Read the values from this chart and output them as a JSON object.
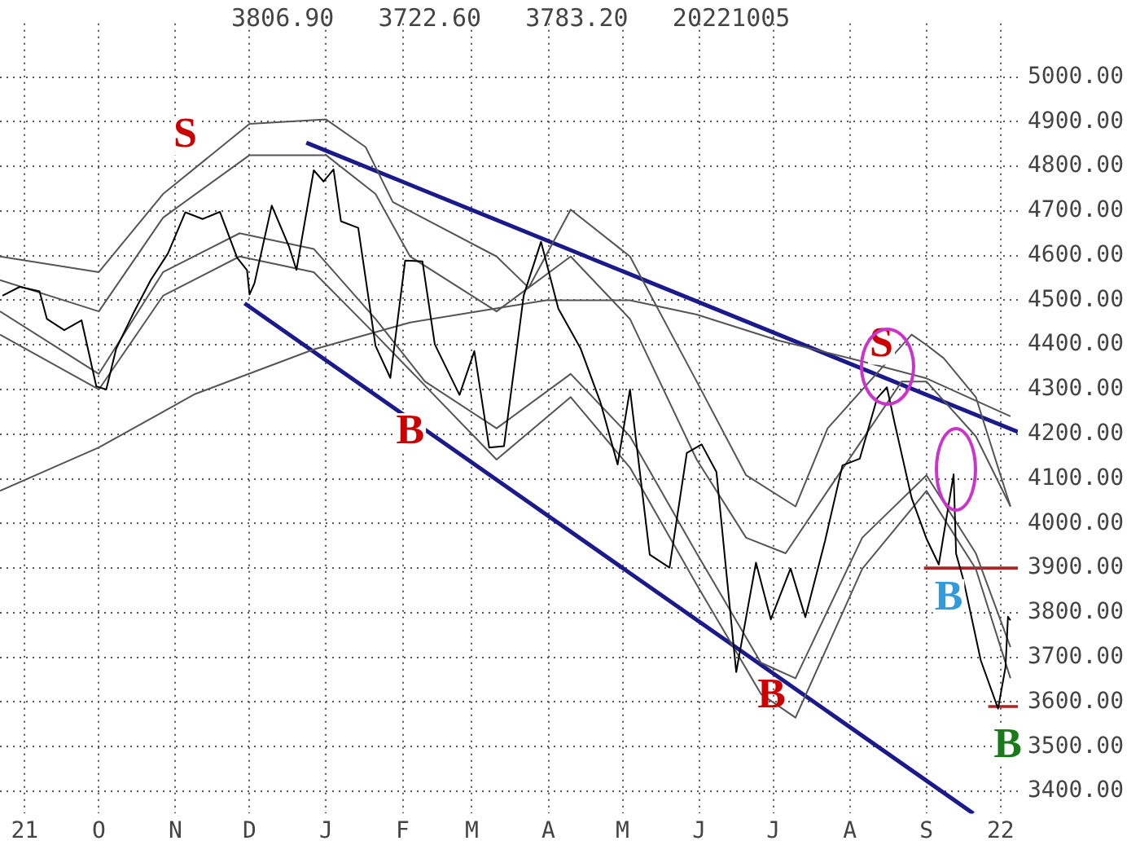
{
  "chart_data": {
    "type": "line",
    "xlim": [
      "2021-08-22",
      "2022-10-08"
    ],
    "xticks": [
      {
        "value": "2021-09-01",
        "label": "21"
      },
      {
        "value": "2021-10-01",
        "label": "O"
      },
      {
        "value": "2021-11-01",
        "label": "N"
      },
      {
        "value": "2021-12-01",
        "label": "D"
      },
      {
        "value": "2022-01-01",
        "label": "J"
      },
      {
        "value": "2022-02-01",
        "label": "F"
      },
      {
        "value": "2022-03-01",
        "label": "M"
      },
      {
        "value": "2022-04-01",
        "label": "A"
      },
      {
        "value": "2022-05-01",
        "label": "M"
      },
      {
        "value": "2022-06-01",
        "label": "J"
      },
      {
        "value": "2022-07-01",
        "label": "J"
      },
      {
        "value": "2022-08-01",
        "label": "A"
      },
      {
        "value": "2022-09-01",
        "label": "S"
      },
      {
        "value": "2022-10-01",
        "label": "22"
      }
    ],
    "ylim": [
      3350,
      5120
    ],
    "yticks": [
      {
        "value": 3400,
        "label": "3400.00"
      },
      {
        "value": 3500,
        "label": "3500.00"
      },
      {
        "value": 3600,
        "label": "3600.00"
      },
      {
        "value": 3700,
        "label": "3700.00"
      },
      {
        "value": 3800,
        "label": "3800.00"
      },
      {
        "value": 3900,
        "label": "3900.00"
      },
      {
        "value": 4000,
        "label": "4000.00"
      },
      {
        "value": 4100,
        "label": "4100.00"
      },
      {
        "value": 4200,
        "label": "4200.00"
      },
      {
        "value": 4300,
        "label": "4300.00"
      },
      {
        "value": 4400,
        "label": "4400.00"
      },
      {
        "value": 4500,
        "label": "4500.00"
      },
      {
        "value": 4600,
        "label": "4600.00"
      },
      {
        "value": 4700,
        "label": "4700.00"
      },
      {
        "value": 4800,
        "label": "4800.00"
      },
      {
        "value": 4900,
        "label": "4900.00"
      },
      {
        "value": 5000,
        "label": "5000.00"
      }
    ],
    "grid": true,
    "legend": false,
    "marker": "none",
    "line_style": "solid",
    "series": [
      {
        "color": "#000000",
        "x": [
          "2021-08-23",
          "2021-08-30",
          "2021-09-07",
          "2021-09-10",
          "2021-09-17",
          "2021-09-24",
          "2021-09-30",
          "2021-10-04",
          "2021-10-08",
          "2021-10-15",
          "2021-10-22",
          "2021-10-29",
          "2021-11-05",
          "2021-11-12",
          "2021-11-19",
          "2021-11-26",
          "2021-11-30",
          "2021-12-01",
          "2021-12-03",
          "2021-12-10",
          "2021-12-17",
          "2021-12-20",
          "2021-12-27",
          "2021-12-31",
          "2022-01-04",
          "2022-01-07",
          "2022-01-14",
          "2022-01-21",
          "2022-01-27",
          "2022-02-02",
          "2022-02-09",
          "2022-02-14",
          "2022-02-24",
          "2022-03-02",
          "2022-03-08",
          "2022-03-14",
          "2022-03-22",
          "2022-03-29",
          "2022-04-05",
          "2022-04-14",
          "2022-04-22",
          "2022-04-29",
          "2022-05-04",
          "2022-05-12",
          "2022-05-20",
          "2022-05-27",
          "2022-06-02",
          "2022-06-08",
          "2022-06-16",
          "2022-06-24",
          "2022-06-30",
          "2022-07-08",
          "2022-07-14",
          "2022-07-22",
          "2022-07-29",
          "2022-08-05",
          "2022-08-12",
          "2022-08-16",
          "2022-08-19",
          "2022-08-26",
          "2022-09-01",
          "2022-09-06",
          "2022-09-12",
          "2022-09-13",
          "2022-09-16",
          "2022-09-23",
          "2022-09-30",
          "2022-10-03",
          "2022-10-04",
          "2022-10-05"
        ],
        "values": [
          4510,
          4530,
          4520,
          4458,
          4433,
          4455,
          4307,
          4300,
          4391,
          4471,
          4545,
          4605,
          4697,
          4682,
          4698,
          4595,
          4567,
          4513,
          4538,
          4712,
          4620,
          4568,
          4791,
          4766,
          4793,
          4677,
          4662,
          4398,
          4326,
          4589,
          4587,
          4401,
          4288,
          4386,
          4170,
          4173,
          4511,
          4631,
          4481,
          4392,
          4272,
          4132,
          4300,
          3930,
          3901,
          4158,
          4177,
          4115,
          3667,
          3912,
          3785,
          3899,
          3790,
          3962,
          4130,
          4145,
          4280,
          4305,
          4228,
          4057,
          3966,
          3908,
          4110,
          3932,
          3873,
          3693,
          3585,
          3678,
          3791,
          3783
        ]
      },
      {
        "color": "#555555",
        "x": [
          "2021-08-22",
          "2021-10-01",
          "2021-10-27",
          "2021-12-01",
          "2022-01-01",
          "2022-01-17",
          "2022-01-28",
          "2022-03-11",
          "2022-03-24",
          "2022-04-10",
          "2022-05-04",
          "2022-05-31",
          "2022-06-20",
          "2022-07-10",
          "2022-07-23",
          "2022-08-26",
          "2022-09-01",
          "2022-09-08",
          "2022-09-21",
          "2022-09-30",
          "2022-10-05"
        ],
        "values": [
          4598,
          4563,
          4738,
          4895,
          4905,
          4843,
          4720,
          4598,
          4528,
          4703,
          4598,
          4318,
          4108,
          4038,
          4213,
          4423,
          4400,
          4370,
          4283,
          4125,
          4038
        ]
      },
      {
        "color": "#555555",
        "x": [
          "2021-08-22",
          "2021-10-01",
          "2021-10-27",
          "2021-12-01",
          "2022-01-01",
          "2022-01-21",
          "2022-02-04",
          "2022-03-11",
          "2022-04-10",
          "2022-05-04",
          "2022-05-31",
          "2022-06-20",
          "2022-07-06",
          "2022-07-23",
          "2022-08-22",
          "2022-09-01",
          "2022-09-21",
          "2022-10-05"
        ],
        "values": [
          4545,
          4475,
          4685,
          4825,
          4825,
          4738,
          4598,
          4475,
          4598,
          4458,
          4143,
          3968,
          3933,
          4073,
          4318,
          4318,
          4195,
          4038
        ]
      },
      {
        "color": "#555555",
        "x": [
          "2021-08-22",
          "2021-10-01",
          "2021-10-27",
          "2021-11-27",
          "2021-12-27",
          "2022-01-21",
          "2022-02-10",
          "2022-03-11",
          "2022-04-10",
          "2022-05-04",
          "2022-05-31",
          "2022-06-26",
          "2022-07-10",
          "2022-08-06",
          "2022-09-01",
          "2022-09-21",
          "2022-10-05"
        ],
        "values": [
          4475,
          4335,
          4563,
          4650,
          4615,
          4458,
          4318,
          4213,
          4335,
          4195,
          3933,
          3688,
          3653,
          3968,
          4108,
          3933,
          3723
        ]
      },
      {
        "color": "#555555",
        "x": [
          "2021-08-22",
          "2021-10-01",
          "2021-10-27",
          "2021-11-27",
          "2021-12-27",
          "2022-01-21",
          "2022-03-11",
          "2022-04-10",
          "2022-05-04",
          "2022-05-31",
          "2022-06-26",
          "2022-07-10",
          "2022-08-06",
          "2022-09-01",
          "2022-09-21",
          "2022-10-05"
        ],
        "values": [
          4423,
          4300,
          4510,
          4598,
          4563,
          4423,
          4143,
          4283,
          4125,
          3863,
          3618,
          3565,
          3898,
          4073,
          3898,
          3653
        ]
      },
      {
        "color": "#555555",
        "x": [
          "2021-08-22",
          "2021-10-01",
          "2021-11-09",
          "2021-12-27",
          "2022-02-04",
          "2022-03-31",
          "2022-05-04",
          "2022-05-31",
          "2022-07-03",
          "2022-08-06",
          "2022-09-01",
          "2022-10-05"
        ],
        "values": [
          4073,
          4170,
          4290,
          4390,
          4450,
          4500,
          4500,
          4468,
          4410,
          4363,
          4325,
          4240
        ]
      },
      {
        "color": "#1a1a8c",
        "x": [
          "2021-12-24",
          "2022-10-08"
        ],
        "values": [
          4853,
          4205
        ]
      },
      {
        "color": "#1a1a8c",
        "x": [
          "2021-11-29",
          "2022-09-20"
        ],
        "values": [
          4493,
          3350
        ]
      },
      {
        "color": "#b22222",
        "x": [
          "2022-08-31",
          "2022-10-08"
        ],
        "values": [
          3900,
          3900
        ]
      },
      {
        "color": "#b22222",
        "x": [
          "2022-09-26",
          "2022-10-08"
        ],
        "values": [
          3590,
          3590
        ]
      }
    ],
    "annotations": [
      "3806.90   3722.60   3783.20   20221005",
      "S",
      "B",
      "B",
      "S",
      "B",
      "B"
    ]
  }
}
